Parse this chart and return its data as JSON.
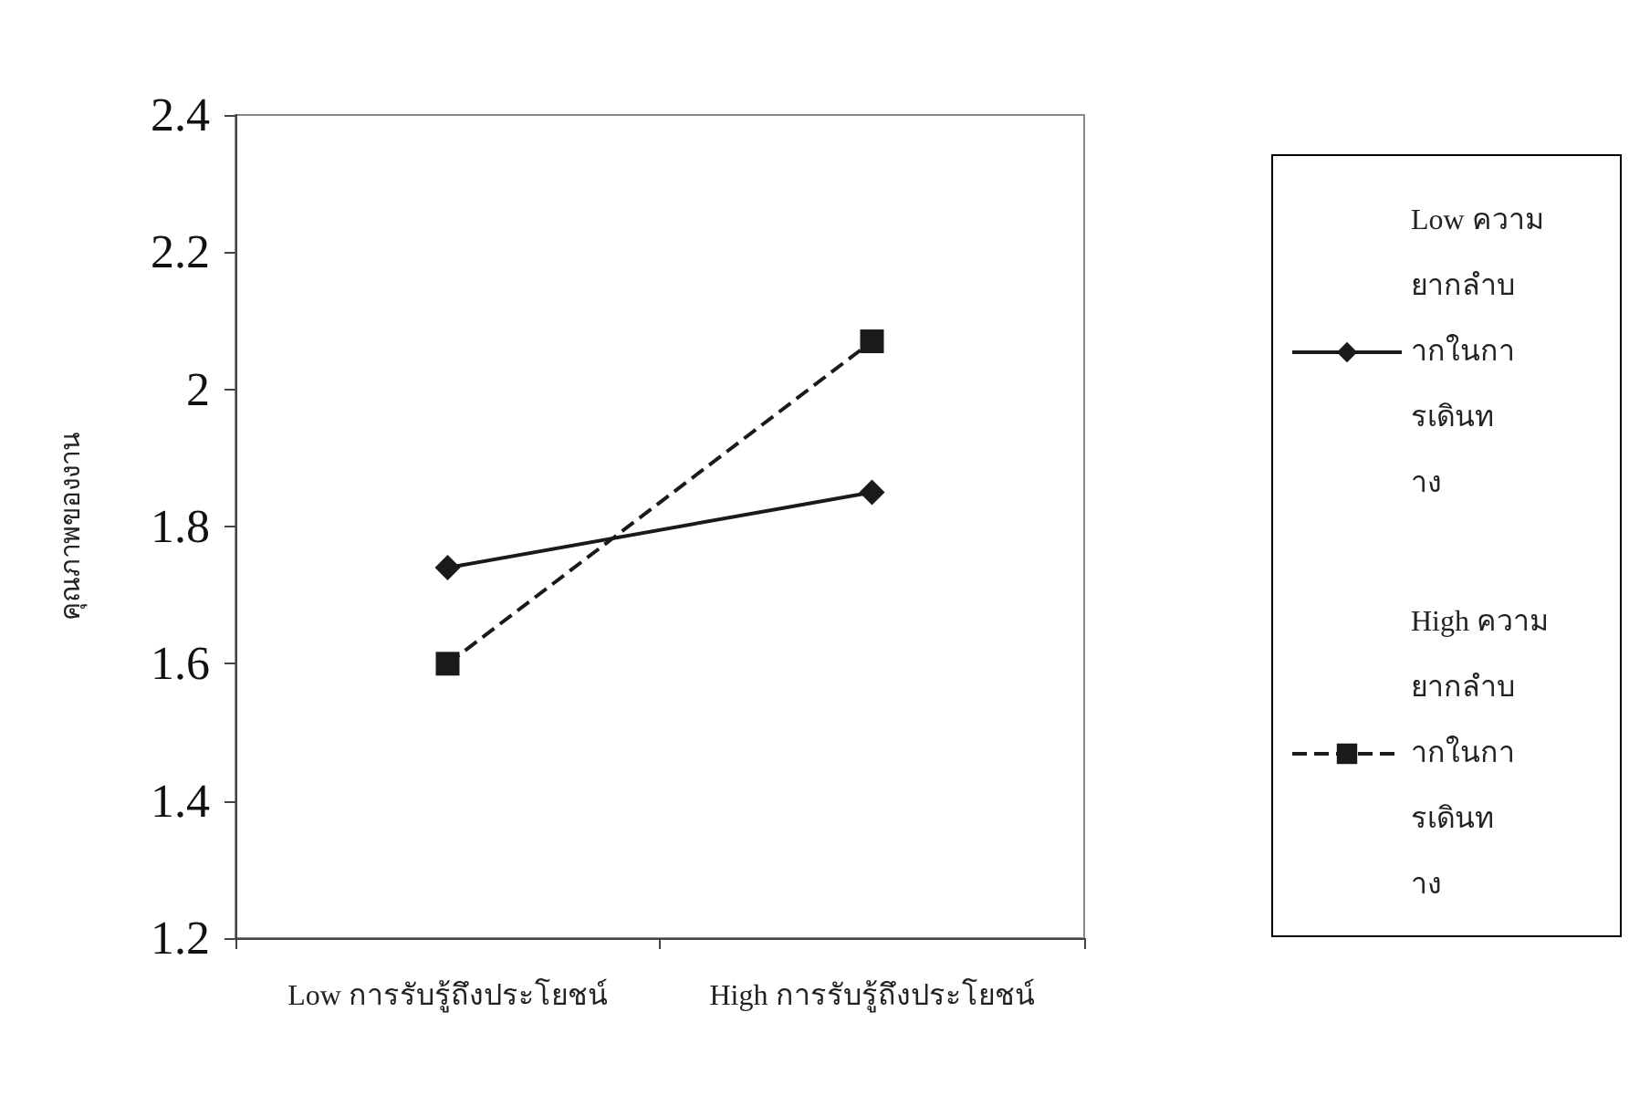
{
  "chart_data": {
    "type": "line",
    "ylabel": "คุณภาพของงาน",
    "categories": [
      "Low การรับรู้ถึงประโยชน์",
      "High การรับรู้ถึงประโยชน์"
    ],
    "series": [
      {
        "name": "Low ความยากลำบากในการเดินทาง",
        "color": "#1a1a1a",
        "values": [
          1.74,
          1.85
        ],
        "marker": "diamond",
        "line_style": "solid"
      },
      {
        "name": "High ความยากลำบากในการเดินทาง",
        "color": "#1a1a1a",
        "values": [
          1.6,
          2.07
        ],
        "marker": "square",
        "line_style": "dashed"
      }
    ],
    "ylim": [
      1.2,
      2.4
    ],
    "yticks": [
      1.2,
      1.4,
      1.6,
      1.8,
      2,
      2.2,
      2.4
    ],
    "grid": false,
    "legend": "right"
  }
}
